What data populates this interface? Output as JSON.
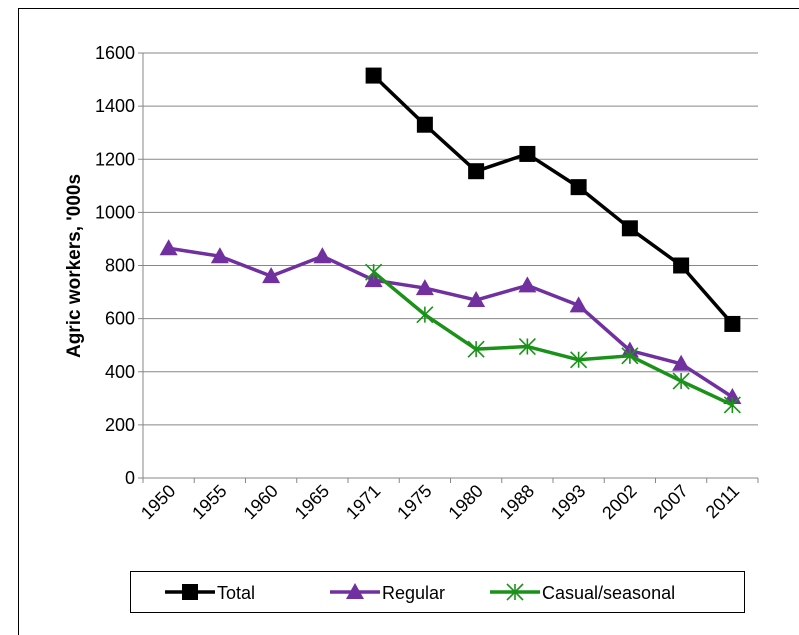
{
  "chart_data": {
    "type": "line",
    "y_label": "Agric workers, '000s",
    "categories": [
      "1950",
      "1955",
      "1960",
      "1965",
      "1971",
      "1975",
      "1980",
      "1988",
      "1993",
      "2002",
      "2007",
      "2011"
    ],
    "series": [
      {
        "name": "Total",
        "color": "#000000",
        "marker": "square",
        "values": [
          null,
          null,
          null,
          null,
          1515,
          1330,
          1155,
          1220,
          1095,
          940,
          800,
          580
        ]
      },
      {
        "name": "Regular",
        "color": "#7030a0",
        "marker": "triangle",
        "values": [
          865,
          835,
          760,
          835,
          745,
          715,
          670,
          725,
          650,
          480,
          430,
          305
        ]
      },
      {
        "name": "Casual/seasonal",
        "color": "#1a921a",
        "marker": "asterisk",
        "values": [
          null,
          null,
          null,
          null,
          775,
          615,
          485,
          495,
          445,
          460,
          365,
          275
        ]
      }
    ],
    "ylim": [
      0,
      1600
    ],
    "yticks": [
      0,
      200,
      400,
      600,
      800,
      1000,
      1200,
      1400,
      1600
    ],
    "grid": true,
    "legend": "bottom"
  }
}
